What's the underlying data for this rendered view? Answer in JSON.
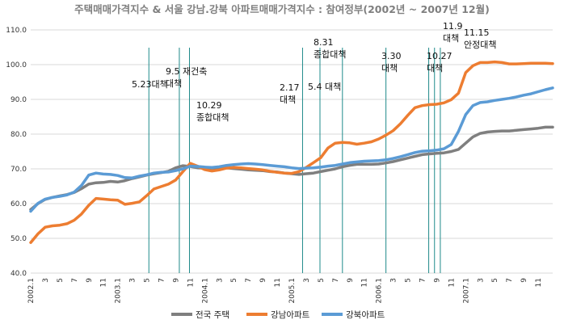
{
  "chart_data": {
    "type": "line",
    "title": "주택매매가격지수 & 서울 강남.강북 아파트매매가격지수 : 참여정부(2002년 ~ 2007년 12월)",
    "ylim": [
      40,
      110
    ],
    "yticks": [
      "40.0",
      "50.0",
      "60.0",
      "70.0",
      "80.0",
      "90.0",
      "100.0",
      "110.0"
    ],
    "grid": "horizontal",
    "legend": "bottom",
    "x_tick_labels": [
      "2002.1",
      "3",
      "5",
      "7",
      "9",
      "11",
      "2003.1",
      "3",
      "5",
      "7",
      "9",
      "11",
      "2004.1",
      "3",
      "5",
      "7",
      "9",
      "11",
      "2005.1",
      "3",
      "5",
      "7",
      "9",
      "11",
      "2006.1",
      "3",
      "5",
      "7",
      "9",
      "11",
      "2007.1",
      "3",
      "5",
      "7",
      "9",
      "11"
    ],
    "colors": {
      "national": "#7f7f7f",
      "gangnam": "#ed7d31",
      "gangbuk": "#5b9bd5",
      "event_line": "#1f8a8a"
    },
    "series": [
      {
        "name": "전국 주택",
        "color_key": "national",
        "values": [
          58.3,
          60.0,
          61.2,
          61.8,
          62.2,
          62.6,
          63.2,
          64.3,
          65.6,
          66.0,
          66.1,
          66.4,
          66.2,
          66.6,
          67.2,
          67.7,
          68.2,
          68.6,
          68.9,
          69.3,
          70.3,
          70.9,
          70.7,
          70.3,
          70.2,
          70.2,
          70.3,
          70.3,
          70.1,
          69.9,
          69.7,
          69.6,
          69.5,
          69.2,
          69.1,
          68.8,
          68.6,
          68.4,
          68.6,
          68.8,
          69.2,
          69.6,
          70.0,
          70.6,
          71.0,
          71.3,
          71.3,
          71.3,
          71.4,
          71.7,
          72.1,
          72.6,
          73.1,
          73.6,
          74.1,
          74.3,
          74.5,
          74.6,
          75.0,
          75.6,
          77.4,
          79.2,
          80.2,
          80.6,
          80.8,
          80.9,
          80.9,
          81.1,
          81.3,
          81.5,
          81.7,
          82.0,
          82.0
        ]
      },
      {
        "name": "강남아파트",
        "color_key": "gangnam",
        "values": [
          48.8,
          51.3,
          53.2,
          53.6,
          53.8,
          54.2,
          55.2,
          57.0,
          59.5,
          61.5,
          61.3,
          61.1,
          61.0,
          59.8,
          60.1,
          60.5,
          62.3,
          64.2,
          64.9,
          65.6,
          66.8,
          69.2,
          71.6,
          70.8,
          69.8,
          69.4,
          69.7,
          70.2,
          70.4,
          70.3,
          70.1,
          69.9,
          69.7,
          69.3,
          69.0,
          68.8,
          68.7,
          69.2,
          70.4,
          71.8,
          73.2,
          76.0,
          77.4,
          77.6,
          77.5,
          77.1,
          77.4,
          77.8,
          78.6,
          79.7,
          81.0,
          83.0,
          85.4,
          87.6,
          88.2,
          88.5,
          88.6,
          89.0,
          89.9,
          91.8,
          97.7,
          99.7,
          100.6,
          100.6,
          100.8,
          100.6,
          100.2,
          100.2,
          100.3,
          100.4,
          100.4,
          100.4,
          100.3
        ]
      },
      {
        "name": "강북아파트",
        "color_key": "gangbuk",
        "values": [
          57.8,
          60.1,
          61.3,
          61.8,
          62.1,
          62.5,
          63.3,
          65.2,
          68.2,
          68.8,
          68.5,
          68.4,
          68.1,
          67.5,
          67.4,
          67.9,
          68.3,
          68.8,
          69.0,
          69.1,
          69.5,
          70.0,
          70.8,
          70.7,
          70.5,
          70.4,
          70.6,
          71.0,
          71.2,
          71.4,
          71.5,
          71.4,
          71.2,
          71.0,
          70.8,
          70.6,
          70.3,
          70.1,
          70.2,
          70.3,
          70.5,
          70.8,
          71.0,
          71.4,
          71.8,
          72.0,
          72.2,
          72.3,
          72.4,
          72.6,
          73.0,
          73.5,
          74.1,
          74.7,
          75.1,
          75.2,
          75.4,
          75.8,
          77.0,
          80.8,
          85.6,
          88.2,
          89.1,
          89.3,
          89.7,
          90.0,
          90.3,
          90.7,
          91.2,
          91.6,
          92.2,
          92.8,
          93.3
        ]
      }
    ],
    "events": [
      {
        "month_index": 16.3,
        "label_lines": [
          "5.23대책"
        ]
      },
      {
        "month_index": 20.5,
        "label_lines": [
          "9.5  재건축",
          "대책"
        ]
      },
      {
        "month_index": 21.9,
        "label_lines": [
          "10.29",
          "종합대책"
        ]
      },
      {
        "month_index": 37.5,
        "label_lines": [
          "2.17",
          "대책"
        ]
      },
      {
        "month_index": 39.9,
        "label_lines": [
          "5.4  대책"
        ]
      },
      {
        "month_index": 43.0,
        "label_lines": [
          "8.31",
          "종합대책"
        ]
      },
      {
        "month_index": 49.0,
        "label_lines": [
          "3.30",
          "대책"
        ]
      },
      {
        "month_index": 54.9,
        "label_lines": [
          "10.27",
          "대책"
        ]
      },
      {
        "month_index": 55.7,
        "label_lines": [
          "11.9",
          "대책"
        ]
      },
      {
        "month_index": 56.5,
        "label_lines": [
          "11.15",
          "안정대책"
        ]
      }
    ]
  }
}
